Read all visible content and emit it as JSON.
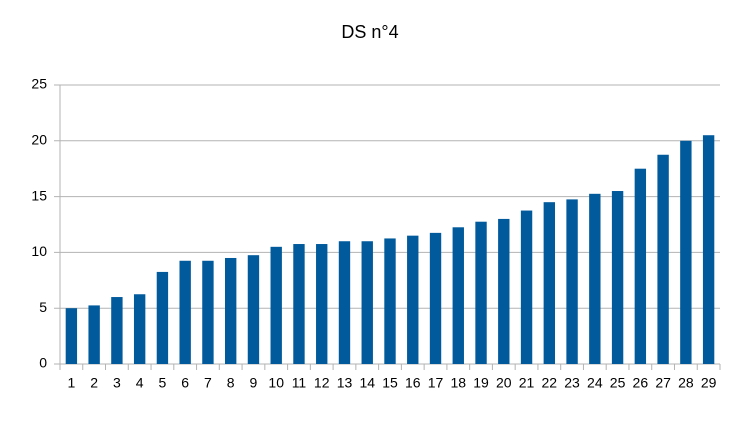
{
  "chart_data": {
    "type": "bar",
    "title": "DS n°4",
    "categories": [
      "1",
      "2",
      "3",
      "4",
      "5",
      "6",
      "7",
      "8",
      "9",
      "10",
      "11",
      "12",
      "13",
      "14",
      "15",
      "16",
      "17",
      "18",
      "19",
      "20",
      "21",
      "22",
      "23",
      "24",
      "25",
      "26",
      "27",
      "28",
      "29"
    ],
    "values": [
      5,
      5.25,
      6,
      6.25,
      8.25,
      9.25,
      9.25,
      9.5,
      9.75,
      10.5,
      10.75,
      10.75,
      11,
      11,
      11.25,
      11.5,
      11.75,
      12.25,
      12.75,
      13,
      13.75,
      14.5,
      14.75,
      15.25,
      15.5,
      17.5,
      18.75,
      20,
      20.5
    ],
    "color": "#005a9c",
    "ylim": [
      0,
      25
    ],
    "yticks": [
      0,
      5,
      10,
      15,
      20,
      25
    ],
    "grid": true
  }
}
